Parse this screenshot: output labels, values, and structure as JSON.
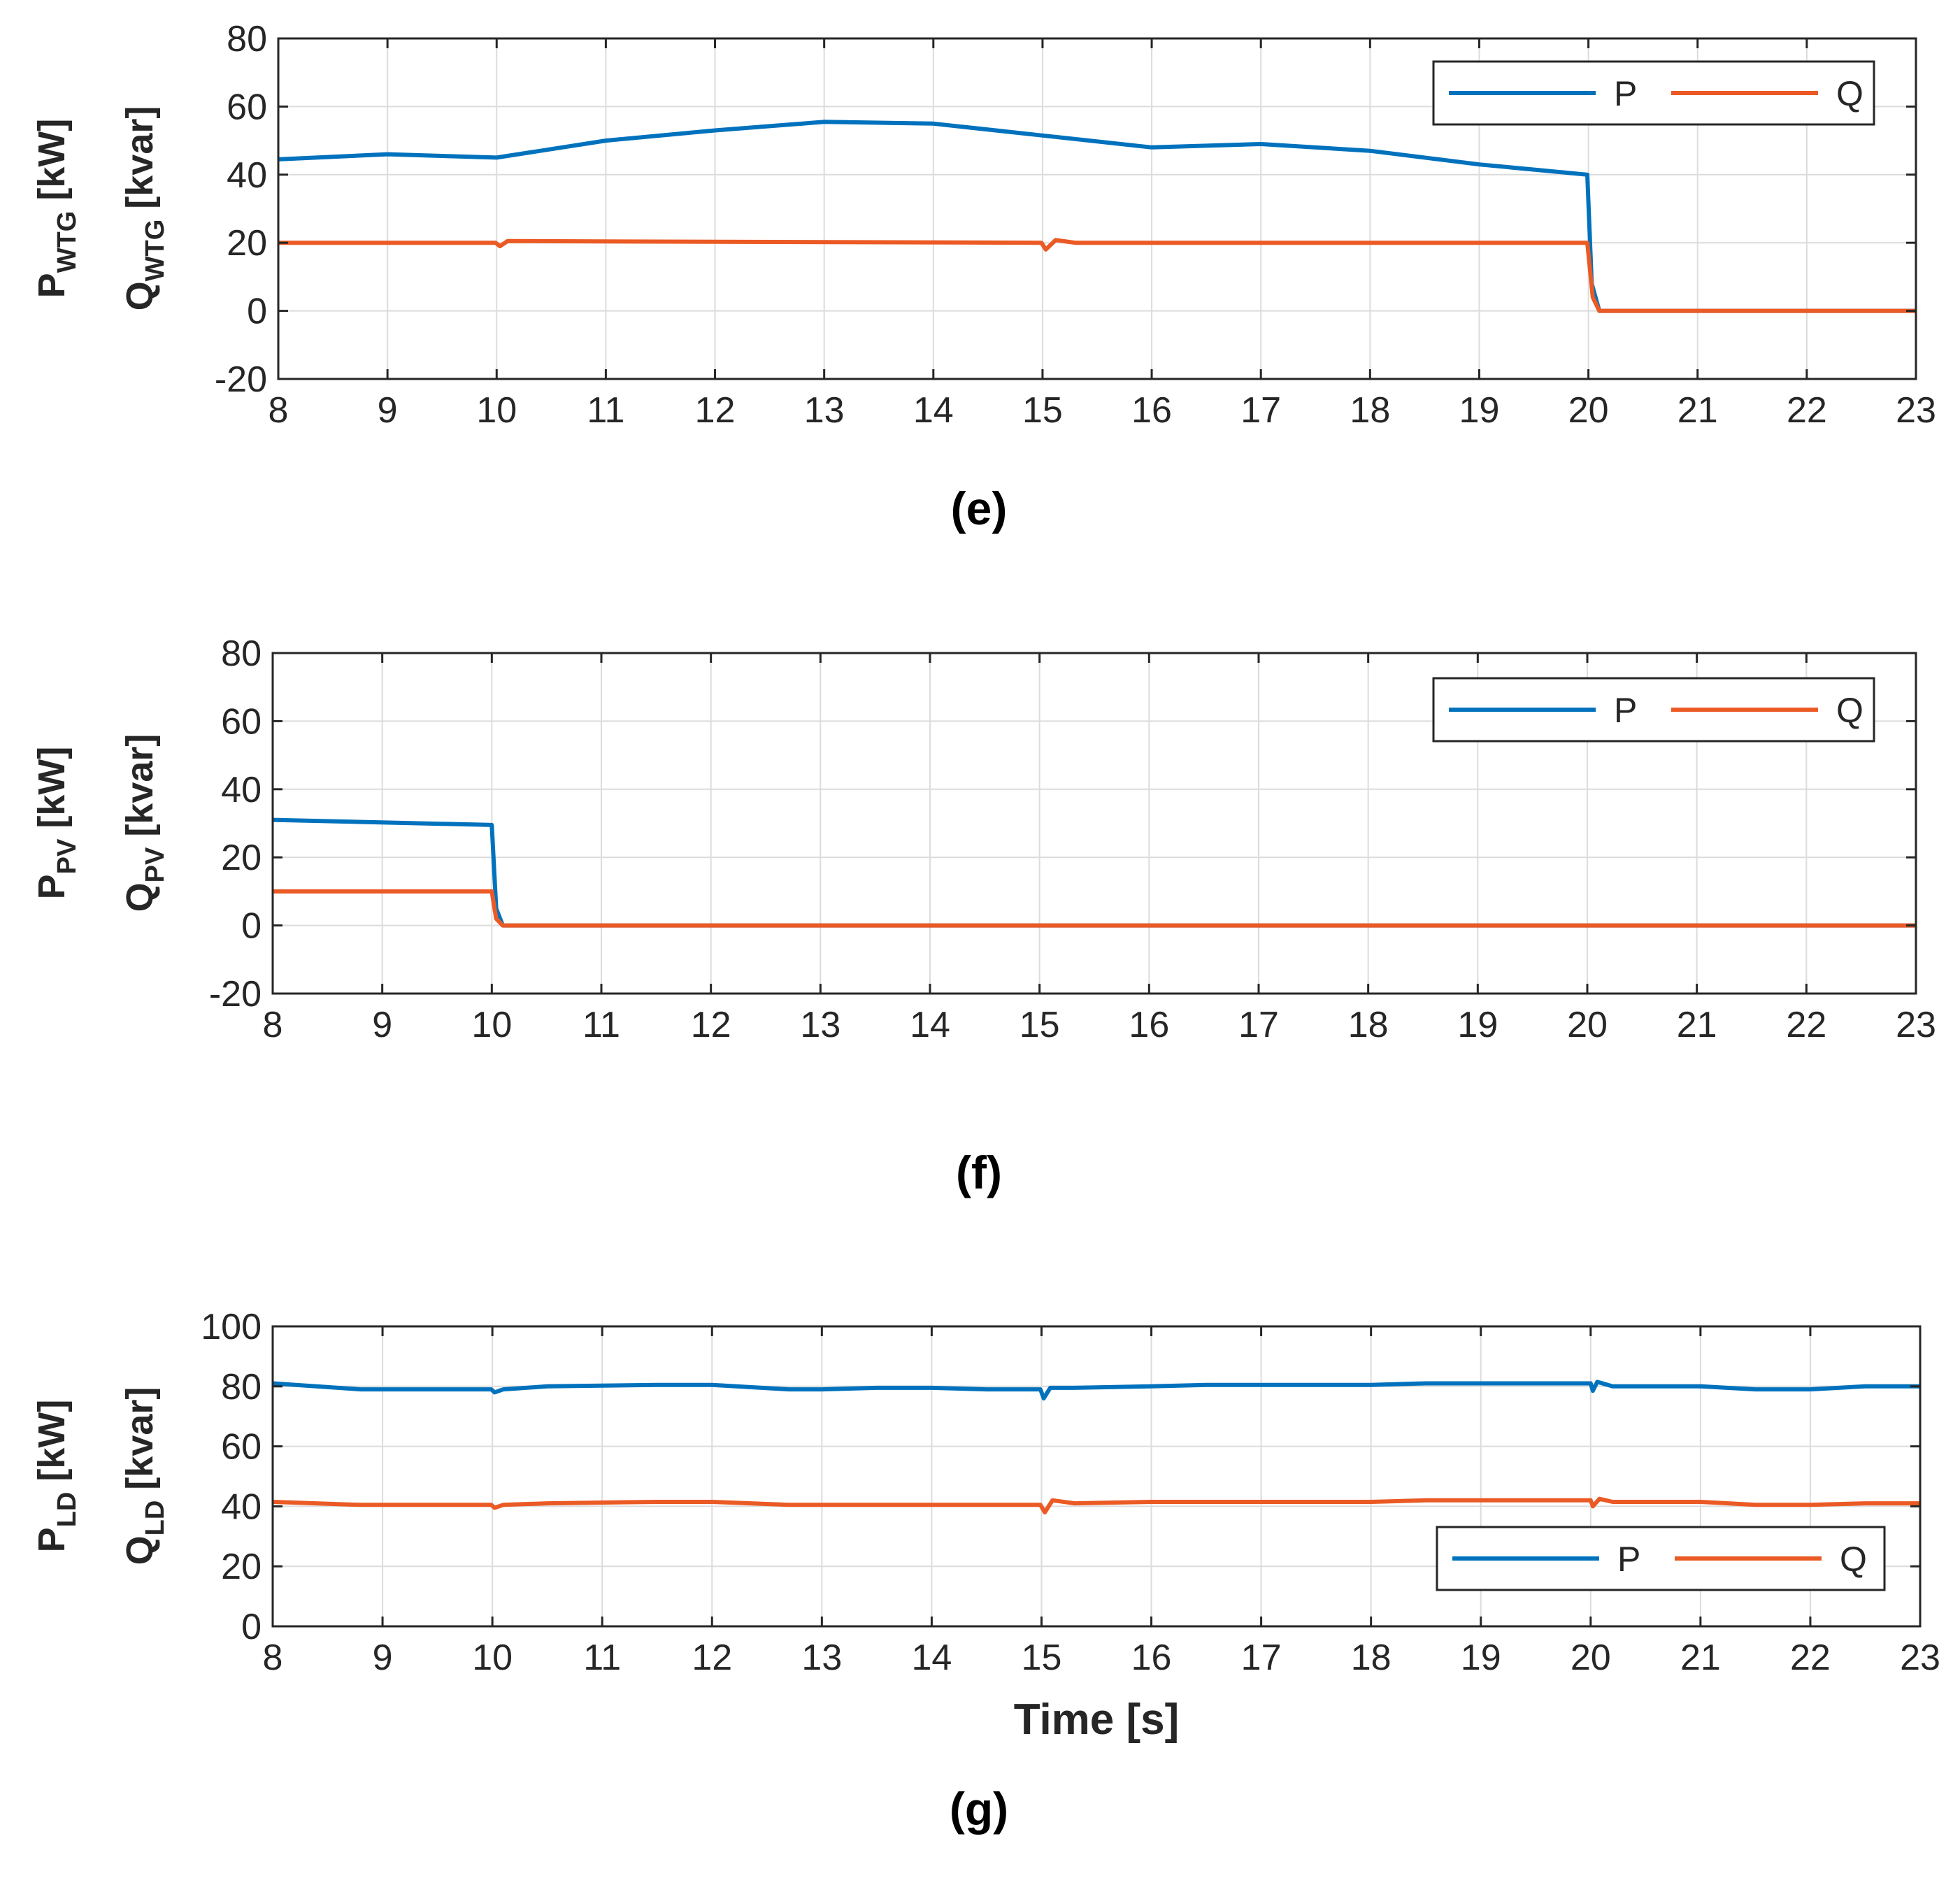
{
  "colors": {
    "P": "#0072BD",
    "Q": "#EB5A24",
    "grid": "#DCDCDC",
    "axis": "#262626"
  },
  "chart_data": [
    {
      "type": "line",
      "caption": "(e)",
      "ylabel": {
        "p_main": "P",
        "p_sub": "WTG",
        "p_unit": " [kW]",
        "q_main": "Q",
        "q_sub": "WTG",
        "q_unit": " [kvar]"
      },
      "xlabel": "",
      "xlim": [
        8,
        23
      ],
      "ylim": [
        -20,
        80
      ],
      "xticks": [
        "8",
        "9",
        "10",
        "11",
        "12",
        "13",
        "14",
        "15",
        "16",
        "17",
        "18",
        "19",
        "20",
        "21",
        "22",
        "23"
      ],
      "yticks": [
        "-20",
        "0",
        "20",
        "40",
        "60",
        "80"
      ],
      "legend": {
        "position": "top-right",
        "labels": [
          "P",
          "Q"
        ]
      },
      "series": [
        {
          "name": "P",
          "x": [
            8,
            9,
            10,
            11,
            12,
            13,
            14,
            15,
            16,
            17,
            18,
            19,
            19.99,
            20.03,
            20.1,
            23
          ],
          "y": [
            44.5,
            46,
            45,
            50,
            53,
            55.5,
            55,
            51.5,
            48,
            49,
            47,
            43,
            40,
            8,
            0,
            0
          ]
        },
        {
          "name": "Q",
          "x": [
            8,
            9.99,
            10.03,
            10.1,
            14.99,
            15.03,
            15.12,
            15.3,
            19.99,
            20.04,
            20.1,
            23
          ],
          "y": [
            20,
            20,
            19,
            20.5,
            20,
            18,
            20.8,
            20,
            20,
            4,
            0,
            0
          ]
        }
      ]
    },
    {
      "type": "line",
      "caption": "(f)",
      "ylabel": {
        "p_main": "P",
        "p_sub": "PV",
        "p_unit": " [kW]",
        "q_main": "Q",
        "q_sub": "PV",
        "q_unit": " [kvar]"
      },
      "xlabel": "",
      "xlim": [
        8,
        23
      ],
      "ylim": [
        -20,
        80
      ],
      "xticks": [
        "8",
        "9",
        "10",
        "11",
        "12",
        "13",
        "14",
        "15",
        "16",
        "17",
        "18",
        "19",
        "20",
        "21",
        "22",
        "23"
      ],
      "yticks": [
        "-20",
        "0",
        "20",
        "40",
        "60",
        "80"
      ],
      "legend": {
        "position": "top-right",
        "labels": [
          "P",
          "Q"
        ]
      },
      "series": [
        {
          "name": "P",
          "x": [
            8,
            10,
            10.04,
            10.1,
            23
          ],
          "y": [
            31,
            29.5,
            5,
            0,
            0
          ]
        },
        {
          "name": "Q",
          "x": [
            8,
            10,
            10.04,
            10.1,
            23
          ],
          "y": [
            10,
            10,
            2,
            0,
            0
          ]
        }
      ]
    },
    {
      "type": "line",
      "caption": "(g)",
      "ylabel": {
        "p_main": "P",
        "p_sub": "LD",
        "p_unit": " [kW]",
        "q_main": "Q",
        "q_sub": "LD",
        "q_unit": " [kvar]"
      },
      "xlabel": "Time [s]",
      "xlim": [
        8,
        23
      ],
      "ylim": [
        0,
        100
      ],
      "xticks": [
        "8",
        "9",
        "10",
        "11",
        "12",
        "13",
        "14",
        "15",
        "16",
        "17",
        "18",
        "19",
        "20",
        "21",
        "22",
        "23"
      ],
      "yticks": [
        "0",
        "20",
        "40",
        "60",
        "80",
        "100"
      ],
      "legend": {
        "position": "bottom-right",
        "labels": [
          "P",
          "Q"
        ]
      },
      "series": [
        {
          "name": "P",
          "x": [
            8,
            8.8,
            9.99,
            10.02,
            10.1,
            10.5,
            11.5,
            12,
            12.7,
            13,
            13.5,
            14,
            14.5,
            14.99,
            15.02,
            15.08,
            15.3,
            16,
            16.5,
            17,
            18,
            18.5,
            19,
            20,
            20.02,
            20.06,
            20.2,
            20.5,
            21,
            21.5,
            22,
            22.5,
            23
          ],
          "y": [
            81,
            79,
            79,
            78,
            79,
            80,
            80.5,
            80.5,
            79,
            79,
            79.5,
            79.5,
            79,
            79,
            76,
            79.5,
            79.5,
            80,
            80.5,
            80.5,
            80.5,
            81,
            81,
            81,
            78.5,
            81.5,
            80,
            80,
            80,
            79,
            79,
            80,
            80
          ]
        },
        {
          "name": "Q",
          "x": [
            8,
            8.8,
            9.99,
            10.02,
            10.1,
            10.5,
            11.5,
            12,
            12.7,
            13,
            13.5,
            14,
            14.5,
            14.99,
            15.03,
            15.1,
            15.3,
            16,
            16.5,
            17,
            18,
            18.5,
            19,
            20,
            20.02,
            20.08,
            20.2,
            20.5,
            21,
            21.5,
            22,
            22.5,
            23
          ],
          "y": [
            41.5,
            40.5,
            40.5,
            39.5,
            40.5,
            41,
            41.5,
            41.5,
            40.5,
            40.5,
            40.5,
            40.5,
            40.5,
            40.5,
            38,
            42,
            41,
            41.5,
            41.5,
            41.5,
            41.5,
            42,
            42,
            42,
            40,
            42.5,
            41.5,
            41.5,
            41.5,
            40.5,
            40.5,
            41,
            41
          ]
        }
      ]
    }
  ]
}
